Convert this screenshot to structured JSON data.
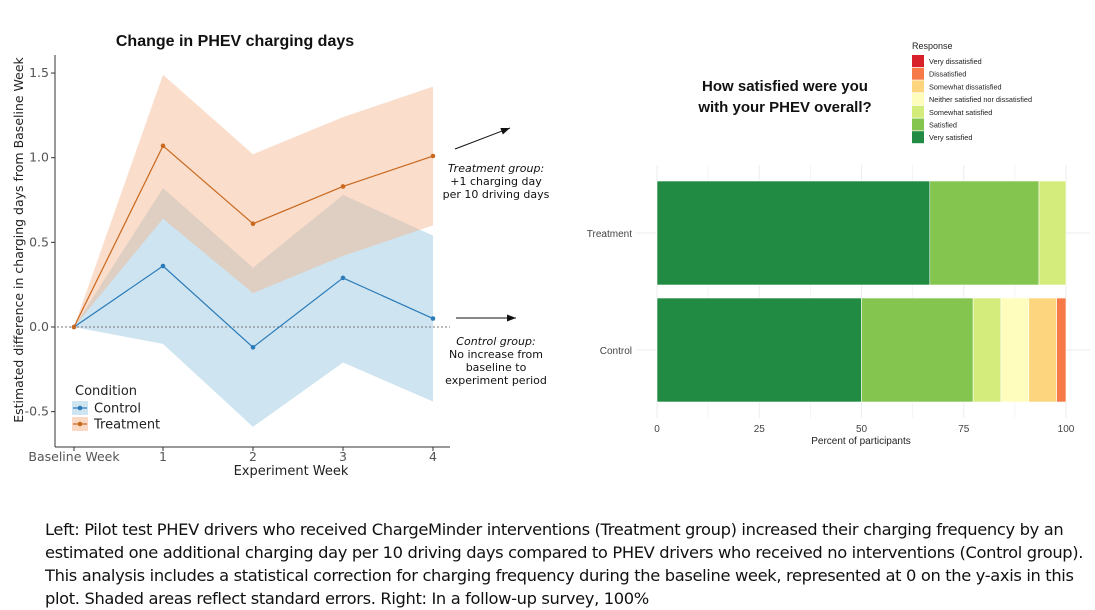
{
  "chart_data": [
    {
      "type": "line",
      "title": "Change in PHEV charging days",
      "xlabel": "Experiment Week",
      "ylabel": "Estimated difference in charging days from Baseline Week",
      "x": [
        "Baseline Week",
        "1",
        "2",
        "3",
        "4"
      ],
      "ylim": [
        -0.65,
        1.6
      ],
      "yticks": [
        1.5,
        1.0,
        0.5,
        0.0,
        -0.5
      ],
      "ytick_labels": [
        "1.5",
        "1.0",
        "0.5",
        "0.0",
        "-0.5"
      ],
      "reference_line": 0,
      "legend": {
        "title": "Condition",
        "placement": "bottom-left"
      },
      "series": [
        {
          "name": "Control",
          "color": "#2b7bb9",
          "band_color": "#9ecae1",
          "values": [
            0,
            0.36,
            -0.12,
            0.29,
            0.05
          ],
          "lower": [
            0,
            -0.1,
            -0.59,
            -0.21,
            -0.44
          ],
          "upper": [
            0,
            0.82,
            0.35,
            0.78,
            0.54
          ]
        },
        {
          "name": "Treatment",
          "color": "#c9681f",
          "band_color": "#f4b48a",
          "values": [
            0,
            1.07,
            0.61,
            0.83,
            1.01
          ],
          "lower": [
            0,
            0.64,
            0.2,
            0.42,
            0.6
          ],
          "upper": [
            0,
            1.49,
            1.02,
            1.24,
            1.42
          ]
        }
      ],
      "annotations": [
        {
          "title": "Treatment group:",
          "lines": [
            "+1 charging day",
            "per 10 driving days"
          ]
        },
        {
          "title": "Control group:",
          "lines": [
            "No increase from",
            "baseline to",
            "experiment period"
          ]
        }
      ]
    },
    {
      "type": "bar",
      "orientation": "horizontal-stacked",
      "title_lines": [
        "How satisfied were you",
        "with your PHEV overall?"
      ],
      "xlabel": "Percent of participants",
      "xlim": [
        0,
        100
      ],
      "xticks": [
        0,
        25,
        50,
        75,
        100
      ],
      "categories": [
        "Treatment",
        "Control"
      ],
      "legend": {
        "title": "Response",
        "placement": "top-right"
      },
      "series": [
        {
          "name": "Very satisfied",
          "color": "#218a43",
          "values": [
            66.7,
            50.0
          ]
        },
        {
          "name": "Satisfied",
          "color": "#84c550",
          "values": [
            26.7,
            27.3
          ]
        },
        {
          "name": "Somewhat satisfied",
          "color": "#d4ec7c",
          "values": [
            6.6,
            6.8
          ]
        },
        {
          "name": "Neither satisfied nor dissatisfied",
          "color": "#fefdbe",
          "values": [
            0,
            6.8
          ]
        },
        {
          "name": "Somewhat dissatisfied",
          "color": "#fdd57e",
          "values": [
            0,
            6.8
          ]
        },
        {
          "name": "Dissatisfied",
          "color": "#f67a48",
          "values": [
            0,
            2.3
          ]
        },
        {
          "name": "Very dissatisfied",
          "color": "#d7202a",
          "values": [
            0,
            0
          ]
        }
      ],
      "legend_order": [
        "Very dissatisfied",
        "Dissatisfied",
        "Somewhat dissatisfied",
        "Neither satisfied nor dissatisfied",
        "Somewhat satisfied",
        "Satisfied",
        "Very satisfied"
      ]
    }
  ],
  "caption": "Left: Pilot test PHEV drivers who received ChargeMinder interventions (Treatment group) increased their charging frequency by an estimated one additional charging day per 10 driving days compared to PHEV drivers who received no interventions (Control group). This analysis includes a statistical correction for charging frequency during the baseline week, represented at 0 on the y-axis in this plot. Shaded areas reflect standard errors. Right: In a follow-up survey, 100%"
}
